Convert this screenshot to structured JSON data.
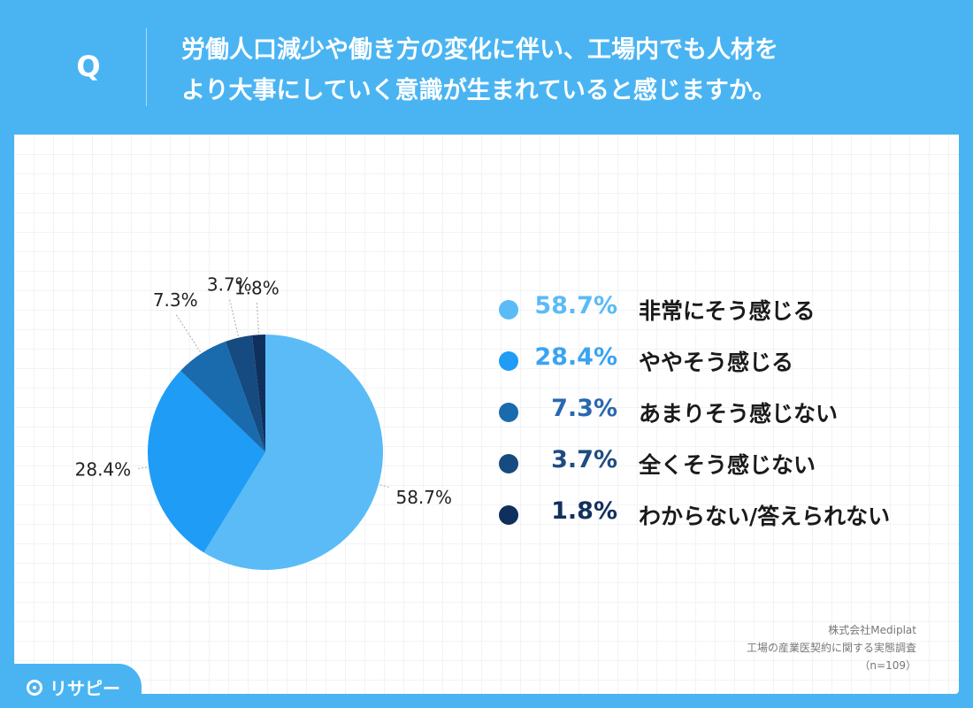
{
  "header": {
    "q_mark": "Q",
    "question_line1": "労働人口減少や働き方の変化に伴い、工場内でも人材を",
    "question_line2": "より大事にしていく意識が生まれていると感じますか。"
  },
  "chart_data": {
    "type": "pie",
    "slices": [
      {
        "label": "非常にそう感じる",
        "value": 58.7,
        "display": "58.7%",
        "color": "#5abbf7",
        "pct_color": "#5abbf7"
      },
      {
        "label": "ややそう感じる",
        "value": 28.4,
        "display": "28.4%",
        "color": "#1e9cf6",
        "pct_color": "#3aa4f2"
      },
      {
        "label": "あまりそう感じない",
        "value": 7.3,
        "display": "7.3%",
        "color": "#1a6aae",
        "pct_color": "#2968b0"
      },
      {
        "label": "全くそう感じない",
        "value": 3.7,
        "display": "3.7%",
        "color": "#154b80",
        "pct_color": "#1e4c80"
      },
      {
        "label": "わからない/答えられない",
        "value": 1.8,
        "display": "1.8%",
        "color": "#0f2f5c",
        "pct_color": "#13315e"
      }
    ]
  },
  "source": {
    "line1": "株式会社Mediplat",
    "line2": "工場の産業医契約に関する実態調査",
    "line3": "（n=109）"
  },
  "logo": {
    "text": "リサピー",
    "icon": "pin-icon"
  }
}
